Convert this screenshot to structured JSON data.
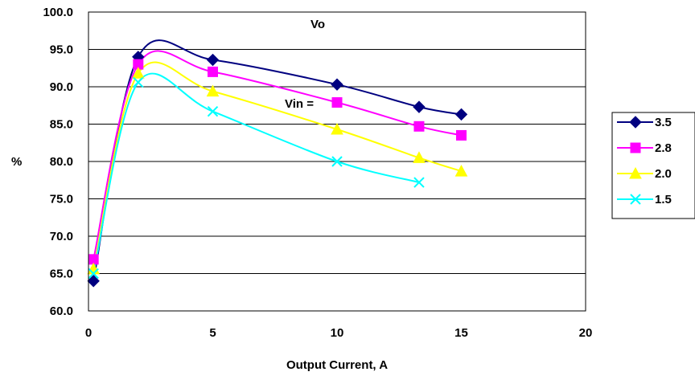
{
  "chart_data": {
    "type": "line",
    "title": "",
    "xlabel": "Output Current, A",
    "ylabel": "%",
    "xlim": [
      0,
      20
    ],
    "ylim": [
      60,
      100
    ],
    "x_ticks": [
      0,
      5,
      10,
      15,
      20
    ],
    "y_ticks": [
      60.0,
      65.0,
      70.0,
      75.0,
      80.0,
      85.0,
      90.0,
      95.0,
      100.0
    ],
    "y_tick_labels": [
      "60.0",
      "65.0",
      "70.0",
      "75.0",
      "80.0",
      "85.0",
      "90.0",
      "95.0",
      "100.0"
    ],
    "grid": "horizontal",
    "smooth": true,
    "legend_position": "right",
    "annotations": [
      "Vo",
      "Vin ="
    ],
    "series": [
      {
        "name": "3.5",
        "color": "#000080",
        "marker": "diamond",
        "x": [
          0.2,
          2,
          5,
          10,
          13.3,
          15
        ],
        "y": [
          64.0,
          94.0,
          93.6,
          90.3,
          87.3,
          86.3
        ]
      },
      {
        "name": "2.8",
        "color": "#FF00FF",
        "marker": "square",
        "x": [
          0.2,
          2,
          5,
          10,
          13.3,
          15
        ],
        "y": [
          66.9,
          93.0,
          92.0,
          87.9,
          84.7,
          83.5
        ]
      },
      {
        "name": "2.0",
        "color": "#FFFF00",
        "marker": "triangle",
        "x": [
          0.2,
          2,
          5,
          10,
          13.3,
          15
        ],
        "y": [
          65.6,
          91.8,
          89.4,
          84.3,
          80.5,
          78.7
        ]
      },
      {
        "name": "1.5",
        "color": "#00FFFF",
        "marker": "x",
        "x": [
          0.2,
          2,
          5,
          10,
          13.3
        ],
        "y": [
          65.0,
          90.6,
          86.7,
          80.0,
          77.2
        ]
      }
    ]
  }
}
